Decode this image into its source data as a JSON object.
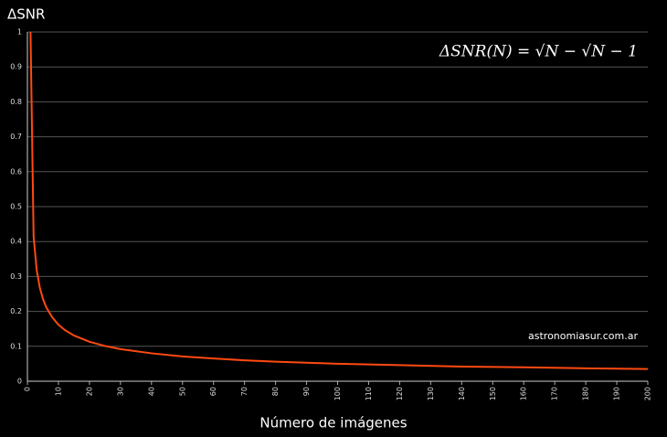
{
  "chart_data": {
    "type": "line",
    "title": "ΔSNR",
    "x_label": "Número de imágenes",
    "annotation": "ΔSNR(N) = √N − √N − 1",
    "watermark": "astronomiasur.com.ar",
    "x": [
      1,
      2,
      3,
      4,
      5,
      6,
      8,
      10,
      12,
      15,
      20,
      25,
      30,
      40,
      50,
      60,
      70,
      80,
      90,
      100,
      120,
      140,
      160,
      180,
      200
    ],
    "series": [
      {
        "color": "#ff4a12",
        "values": [
          1,
          0.414,
          0.318,
          0.268,
          0.236,
          0.213,
          0.183,
          0.162,
          0.147,
          0.131,
          0.113,
          0.101,
          0.092,
          0.08,
          0.071,
          0.065,
          0.06,
          0.056,
          0.053,
          0.05,
          0.046,
          0.042,
          0.04,
          0.037,
          0.035
        ]
      }
    ],
    "xlim": [
      0,
      200
    ],
    "xticks": [
      0,
      10,
      20,
      30,
      40,
      50,
      60,
      70,
      80,
      90,
      100,
      110,
      120,
      130,
      140,
      150,
      160,
      170,
      180,
      190,
      200
    ],
    "ylim": [
      0,
      1
    ],
    "yticks": [
      0,
      0.1,
      0.2,
      0.3,
      0.4,
      0.5,
      0.6,
      0.7,
      0.8,
      0.9,
      1
    ],
    "grid": true
  }
}
